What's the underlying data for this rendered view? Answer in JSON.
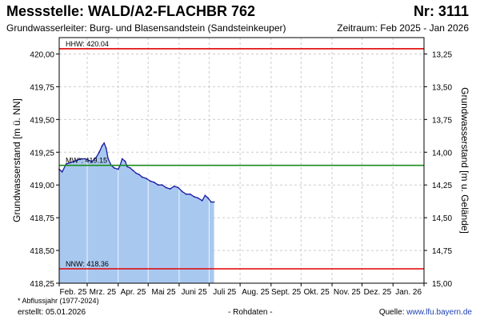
{
  "header": {
    "title": "Messstelle: WALD/A2-FLACHBR 762",
    "station_number": "Nr: 3111",
    "aquifer": "Grundwasserleiter:   Burg- und Blasensandstein (Sandsteinkeuper)",
    "period": "Zeitraum: Feb 2025 - Jan 2026"
  },
  "footer": {
    "footnote": "* Abflussjahr (1977-2024)",
    "created": "erstellt:  05.01.2026",
    "raw_data": "- Rohdaten -",
    "source_label": "Quelle: ",
    "source_url": "www.lfu.bayern.de"
  },
  "colors": {
    "fill": "#a8c8f0",
    "line": "#1a1aa0",
    "hhw": "#e00000",
    "nnw": "#e00000",
    "mw": "#1a8c1a",
    "grid": "#cccccc"
  },
  "chart_data": {
    "type": "area",
    "ylabel": "Grundwasserstand [m ü. NN]",
    "ylabel_right": "Grundwasserstand [m u. Gelände]",
    "ylim": [
      418.25,
      420.125
    ],
    "yticks": [
      "420,00",
      "419,75",
      "419,50",
      "419,25",
      "419,00",
      "418,75",
      "418,50",
      "418,25"
    ],
    "yticks_right": [
      "13,25",
      "13,50",
      "13,75",
      "14,00",
      "14,25",
      "14,50",
      "14,75",
      "15,00"
    ],
    "xticks": [
      "Feb. 25",
      "Mrz. 25",
      "Apr. 25",
      "Mai 25",
      "Juni 25",
      "Juli 25",
      "Aug. 25",
      "Sept. 25",
      "Okt. 25",
      "Nov. 25",
      "Dez. 25",
      "Jan. 26"
    ],
    "reference_lines": [
      {
        "label": "HHW: 420.04",
        "value": 420.04,
        "color": "#e00000"
      },
      {
        "label": "MW*: 419.15",
        "value": 419.15,
        "color": "#1a8c1a"
      },
      {
        "label": "NNW: 418.36",
        "value": 418.36,
        "color": "#e00000"
      }
    ],
    "series": [
      {
        "x": [
          "2025-02-01",
          "2025-02-04",
          "2025-02-08",
          "2025-02-12",
          "2025-02-16",
          "2025-02-19",
          "2025-02-23",
          "2025-02-27",
          "2025-03-02",
          "2025-03-06",
          "2025-03-10",
          "2025-03-13",
          "2025-03-16",
          "2025-03-18",
          "2025-03-20",
          "2025-03-22",
          "2025-03-25",
          "2025-03-28",
          "2025-04-01",
          "2025-04-03",
          "2025-04-05",
          "2025-04-08",
          "2025-04-10",
          "2025-04-13",
          "2025-04-16",
          "2025-04-19",
          "2025-04-22",
          "2025-04-25",
          "2025-04-29",
          "2025-05-03",
          "2025-05-07",
          "2025-05-11",
          "2025-05-15",
          "2025-05-19",
          "2025-05-23",
          "2025-05-27",
          "2025-05-31",
          "2025-06-04",
          "2025-06-08",
          "2025-06-12",
          "2025-06-16",
          "2025-06-20",
          "2025-06-24",
          "2025-06-27",
          "2025-06-30",
          "2025-07-03",
          "2025-07-06"
        ],
        "y": [
          419.12,
          419.1,
          419.16,
          419.17,
          419.18,
          419.19,
          419.2,
          419.2,
          419.19,
          419.18,
          419.21,
          419.25,
          419.3,
          419.32,
          419.28,
          419.2,
          419.15,
          419.13,
          419.12,
          419.15,
          419.2,
          419.18,
          419.14,
          419.13,
          419.11,
          419.09,
          419.08,
          419.06,
          419.05,
          419.03,
          419.02,
          419.0,
          419.0,
          418.98,
          418.97,
          418.99,
          418.98,
          418.95,
          418.93,
          418.93,
          418.91,
          418.9,
          418.88,
          418.92,
          418.9,
          418.87,
          418.87
        ]
      }
    ]
  }
}
